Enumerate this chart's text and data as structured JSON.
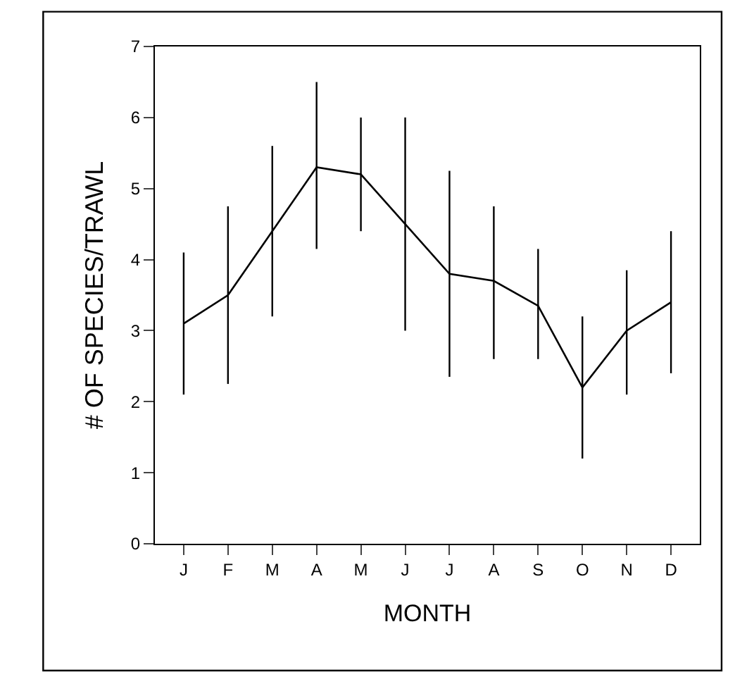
{
  "chart_data": {
    "type": "line",
    "xlabel": "MONTH",
    "ylabel": "# OF SPECIES/TRAWL",
    "categories": [
      "J",
      "F",
      "M",
      "A",
      "M",
      "J",
      "J",
      "A",
      "S",
      "O",
      "N",
      "D"
    ],
    "series": [
      {
        "color": "#000000",
        "values": [
          3.1,
          3.5,
          4.4,
          5.3,
          5.2,
          4.5,
          3.8,
          3.7,
          3.35,
          2.2,
          3.0,
          3.4
        ],
        "errors": [
          [
            2.1,
            4.1
          ],
          [
            2.25,
            4.75
          ],
          [
            3.2,
            5.6
          ],
          [
            4.15,
            6.5
          ],
          [
            4.4,
            6.0
          ],
          [
            3.0,
            6.0
          ],
          [
            2.35,
            5.25
          ],
          [
            2.6,
            4.75
          ],
          [
            2.6,
            4.15
          ],
          [
            1.2,
            3.2
          ],
          [
            2.1,
            3.85
          ],
          [
            2.4,
            4.4
          ]
        ]
      }
    ],
    "ylim": [
      0,
      7
    ],
    "yticks": [
      0,
      1,
      2,
      3,
      4,
      5,
      6,
      7
    ],
    "marker": "none",
    "line_style": "solid"
  }
}
